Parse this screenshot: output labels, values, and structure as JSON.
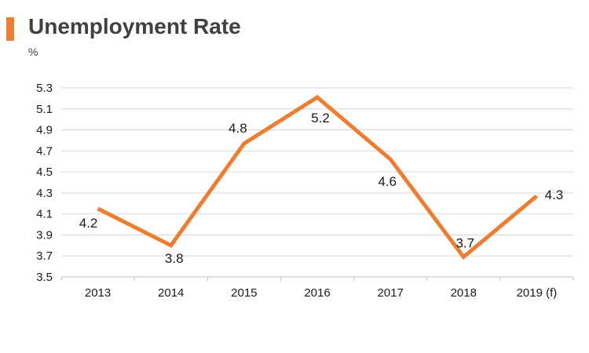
{
  "header": {
    "title": "Unemployment Rate",
    "unit": "%"
  },
  "colors": {
    "accent": "#ee7d31",
    "line": "#ee7d31",
    "grid": "#d9d9d9",
    "text": "#404040"
  },
  "chart_data": {
    "type": "line",
    "title": "Unemployment Rate",
    "xlabel": "",
    "ylabel": "%",
    "categories": [
      "2013",
      "2014",
      "2015",
      "2016",
      "2017",
      "2018",
      "2019 (f)"
    ],
    "values": [
      4.2,
      3.8,
      4.8,
      5.2,
      4.6,
      3.7,
      4.3
    ],
    "plotted_values": [
      4.15,
      3.8,
      4.77,
      5.21,
      4.62,
      3.69,
      4.27
    ],
    "data_labels": [
      "4.2",
      "3.8",
      "4.8",
      "5.2",
      "4.6",
      "3.7",
      "4.3"
    ],
    "ylim": [
      3.5,
      5.3
    ],
    "yticks": [
      "3.5",
      "3.7",
      "3.9",
      "4.1",
      "4.3",
      "4.5",
      "4.7",
      "4.9",
      "5.1",
      "5.3"
    ],
    "grid": true,
    "legend": "none"
  }
}
